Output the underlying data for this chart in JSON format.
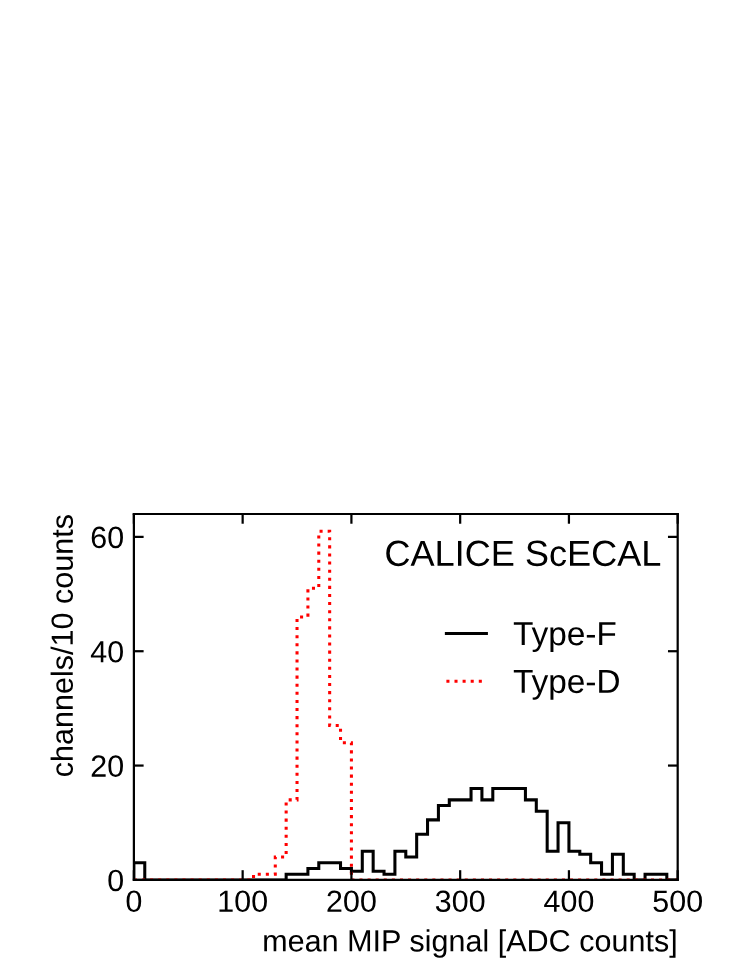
{
  "chart_data": {
    "type": "histogram",
    "xlabel": "mean MIP signal [ADC counts]",
    "ylabel": "channels/10 counts",
    "annotations": [
      "CALICE ScECAL"
    ],
    "bins": [
      0,
      10,
      20,
      30,
      40,
      50,
      60,
      70,
      80,
      90,
      100,
      110,
      120,
      130,
      140,
      150,
      160,
      170,
      180,
      190,
      200,
      210,
      220,
      230,
      240,
      250,
      260,
      270,
      280,
      290,
      300,
      310,
      320,
      330,
      340,
      350,
      360,
      370,
      380,
      390,
      400,
      410,
      420,
      430,
      440,
      450,
      460,
      470,
      480,
      490,
      500
    ],
    "series": [
      {
        "name": "Type-F",
        "color": "#000000",
        "line_style": "solid",
        "values": [
          3,
          0,
          0,
          0,
          0,
          0,
          0,
          0,
          0,
          0,
          0,
          0,
          0,
          0,
          1,
          1,
          2,
          3,
          3,
          2,
          1.5,
          5,
          1.5,
          1,
          5,
          4,
          8,
          10.5,
          13,
          14,
          14,
          16,
          14,
          16,
          16,
          16,
          14,
          12,
          5,
          10,
          5,
          4.5,
          3,
          1,
          4.5,
          1,
          0,
          1,
          1,
          0
        ]
      },
      {
        "name": "Type-D",
        "color": "#ff0000",
        "line_style": "dotted",
        "values": [
          0,
          0,
          0,
          0,
          0,
          0,
          0,
          0,
          0,
          0,
          0,
          1,
          1,
          4,
          14,
          46,
          51,
          61,
          27,
          24,
          0,
          0,
          0,
          0,
          0,
          0,
          0,
          0,
          0,
          0,
          0,
          0,
          0,
          0,
          0,
          0,
          0,
          0,
          0,
          0,
          0,
          0,
          0,
          0,
          0,
          0,
          0,
          0,
          0,
          0
        ]
      }
    ],
    "xlim": [
      0,
      500
    ],
    "xticks": [
      0,
      100,
      200,
      300,
      400,
      500
    ],
    "ylim": [
      0,
      64
    ],
    "yticks": [
      0,
      20,
      40,
      60
    ],
    "legend": "right",
    "grid": false
  }
}
